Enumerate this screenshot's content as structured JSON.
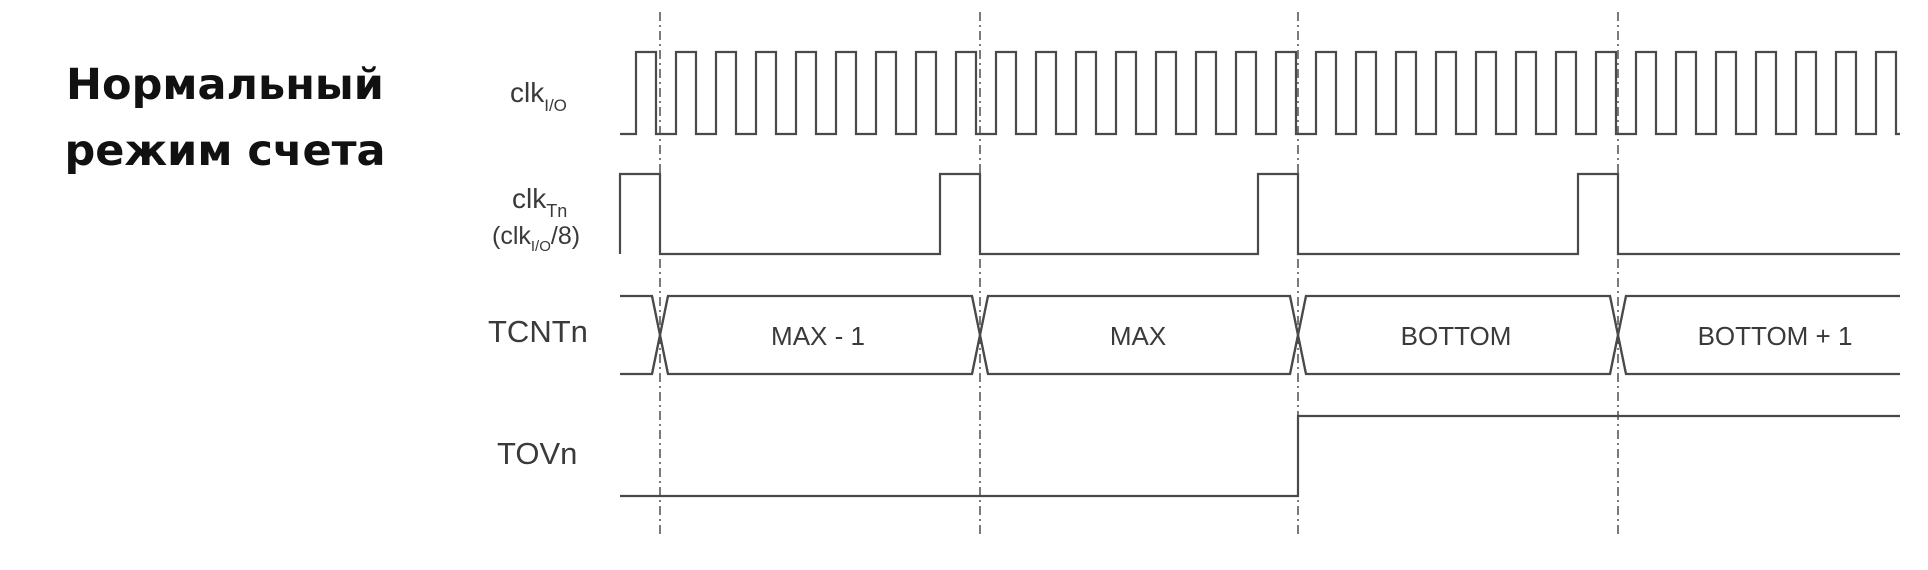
{
  "heading": {
    "line1": "Нормальный",
    "line2": "режим счета"
  },
  "signals": {
    "clk_io": {
      "label_main": "clk",
      "label_sub": "I/O",
      "pulse_count": 32
    },
    "clk_tn": {
      "label_main": "clk",
      "label_sub": "Tn",
      "label_paren_open": "(clk",
      "label_paren_sub": "I/O",
      "label_paren_close": "/8)",
      "divider": 8
    },
    "tcnt": {
      "label": "TCNTn",
      "segments": [
        "MAX - 1",
        "MAX",
        "BOTTOM",
        "BOTTOM + 1"
      ]
    },
    "tov": {
      "label": "TOVn",
      "levels": [
        0,
        0,
        1,
        1
      ]
    }
  },
  "colors": {
    "waveform": "#4a4a4a",
    "label": "#3a3a3a",
    "heading": "#111111",
    "background": "#ffffff"
  }
}
